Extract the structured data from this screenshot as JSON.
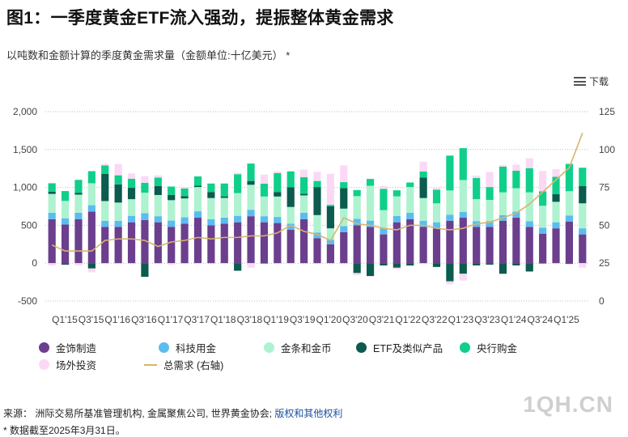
{
  "title": "图1：一季度黄金ETF流入强劲，提振整体黄金需求",
  "subtitle": "以吨数和金额计算的季度黄金需求量（金额单位:十亿美元） *",
  "download_label": "下载",
  "source": {
    "prefix": "来源：",
    "text": "洲际交易所基准管理机构, 金属聚焦公司, 世界黄金协会; ",
    "link": "版权和其他权利"
  },
  "note": "* 数据截至2025年3月31日。",
  "watermark": "1QH.CN",
  "colors": {
    "jewellery": "#6b3f8d",
    "technology": "#5bbcf0",
    "bars_coins": "#aef2d0",
    "etf": "#0b5b4e",
    "central_banks": "#10cf8a",
    "otc": "#fbd9f5",
    "total": "#d8b56c"
  },
  "chart_data": {
    "type": "bar",
    "stacked": true,
    "x_tick_labels": [
      "Q1'15",
      "Q3'15",
      "Q1'16",
      "Q3'16",
      "Q1'17",
      "Q3'17",
      "Q1'18",
      "Q3'18",
      "Q1'19",
      "Q3'19",
      "Q1'20",
      "Q3'20",
      "Q3'21",
      "Q1'22",
      "Q3'22",
      "Q1'23",
      "Q3'23",
      "Q1'24",
      "Q3'24",
      "Q1'25"
    ],
    "categories": [
      "Q1'15",
      "Q2'15",
      "Q3'15",
      "Q4'15",
      "Q1'16",
      "Q2'16",
      "Q3'16",
      "Q4'16",
      "Q1'17",
      "Q2'17",
      "Q3'17",
      "Q4'17",
      "Q1'18",
      "Q2'18",
      "Q3'18",
      "Q4'18",
      "Q1'19",
      "Q2'19",
      "Q3'19",
      "Q4'19",
      "Q1'20",
      "Q2'20",
      "Q3'20",
      "Q4'20",
      "Q1'21",
      "Q2'21",
      "Q3'21",
      "Q4'21",
      "Q1'22",
      "Q2'22",
      "Q3'22",
      "Q4'22",
      "Q1'23",
      "Q2'23",
      "Q3'23",
      "Q4'23",
      "Q1'24",
      "Q2'24",
      "Q3'24",
      "Q4'24",
      "Q1'25"
    ],
    "y_left": {
      "min": -500,
      "max": 2000,
      "ticks": [
        -500,
        0,
        500,
        1000,
        1500,
        2000
      ],
      "tick_labels": [
        "-500",
        "0",
        "500",
        "1,000",
        "1,500",
        "2,000"
      ]
    },
    "y_right": {
      "min": 0,
      "max": 125,
      "ticks": [
        0,
        25,
        50,
        75,
        100,
        125
      ],
      "tick_labels": [
        "0",
        "25",
        "50",
        "75",
        "100",
        "125"
      ]
    },
    "grid": "horizontal dotted",
    "series": [
      {
        "name": "金饰制造",
        "key": "jewellery",
        "values": [
          580,
          510,
          580,
          680,
          480,
          480,
          540,
          570,
          540,
          480,
          520,
          600,
          500,
          520,
          540,
          620,
          540,
          530,
          440,
          580,
          330,
          250,
          410,
          500,
          480,
          380,
          540,
          580,
          480,
          460,
          560,
          600,
          480,
          480,
          560,
          600,
          480,
          390,
          460,
          550,
          380
        ]
      },
      {
        "name": "科技用金",
        "key": "technology",
        "values": [
          85,
          82,
          85,
          85,
          80,
          80,
          85,
          90,
          80,
          82,
          85,
          85,
          80,
          82,
          85,
          85,
          80,
          80,
          82,
          85,
          75,
          60,
          80,
          85,
          82,
          80,
          82,
          85,
          80,
          80,
          80,
          78,
          75,
          75,
          75,
          80,
          75,
          78,
          80,
          80,
          80
        ]
      },
      {
        "name": "金条和金币",
        "key": "bars_coins",
        "values": [
          250,
          230,
          240,
          290,
          260,
          240,
          220,
          270,
          280,
          270,
          250,
          320,
          280,
          260,
          300,
          330,
          260,
          270,
          220,
          230,
          230,
          150,
          230,
          300,
          460,
          240,
          260,
          340,
          300,
          250,
          320,
          420,
          290,
          280,
          300,
          310,
          380,
          290,
          270,
          320,
          330
        ]
      },
      {
        "name": "ETF及类似产品",
        "key": "etf",
        "values": [
          30,
          -20,
          25,
          -70,
          360,
          240,
          150,
          -180,
          120,
          70,
          30,
          20,
          80,
          20,
          -100,
          50,
          -5,
          60,
          260,
          20,
          370,
          290,
          270,
          -130,
          -170,
          -30,
          -60,
          -30,
          270,
          -50,
          -240,
          -140,
          -30,
          -20,
          -140,
          -30,
          -110,
          -5,
          100,
          -10,
          230
        ]
      },
      {
        "name": "央行购金",
        "key": "central_banks",
        "values": [
          110,
          130,
          170,
          160,
          110,
          120,
          120,
          130,
          110,
          110,
          100,
          120,
          110,
          170,
          250,
          230,
          170,
          250,
          210,
          220,
          80,
          20,
          80,
          80,
          90,
          280,
          80,
          60,
          80,
          180,
          460,
          420,
          280,
          170,
          340,
          230,
          320,
          190,
          230,
          360,
          240
        ]
      },
      {
        "name": "场外投资",
        "key": "otc",
        "values": [
          -30,
          -10,
          -30,
          -50,
          20,
          150,
          70,
          90,
          30,
          -20,
          20,
          -5,
          10,
          -10,
          20,
          -60,
          120,
          20,
          -10,
          100,
          120,
          410,
          220,
          -30,
          -10,
          40,
          -20,
          -10,
          130,
          20,
          -40,
          -90,
          30,
          200,
          20,
          80,
          130,
          270,
          100,
          10,
          -60
        ]
      }
    ],
    "line": {
      "name": "总需求 (右轴)",
      "axis": "right",
      "values": [
        37,
        33,
        33,
        33,
        40,
        41,
        41,
        40,
        36,
        39,
        40,
        42,
        41,
        42,
        42,
        43,
        43,
        45,
        50,
        46,
        44,
        40,
        55,
        51,
        50,
        48,
        47,
        50,
        50,
        48,
        47,
        48,
        51,
        52,
        55,
        58,
        64,
        72,
        80,
        88,
        111
      ]
    }
  },
  "legend": [
    {
      "label": "金饰制造",
      "color_key": "jewellery",
      "shape": "dot"
    },
    {
      "label": "科技用金",
      "color_key": "technology",
      "shape": "dot"
    },
    {
      "label": "金条和金币",
      "color_key": "bars_coins",
      "shape": "dot"
    },
    {
      "label": "ETF及类似产品",
      "color_key": "etf",
      "shape": "dot"
    },
    {
      "label": "央行购金",
      "color_key": "central_banks",
      "shape": "dot"
    },
    {
      "label": "场外投资",
      "color_key": "otc",
      "shape": "dot"
    },
    {
      "label": "总需求 (右轴)",
      "color_key": "total",
      "shape": "line"
    }
  ]
}
